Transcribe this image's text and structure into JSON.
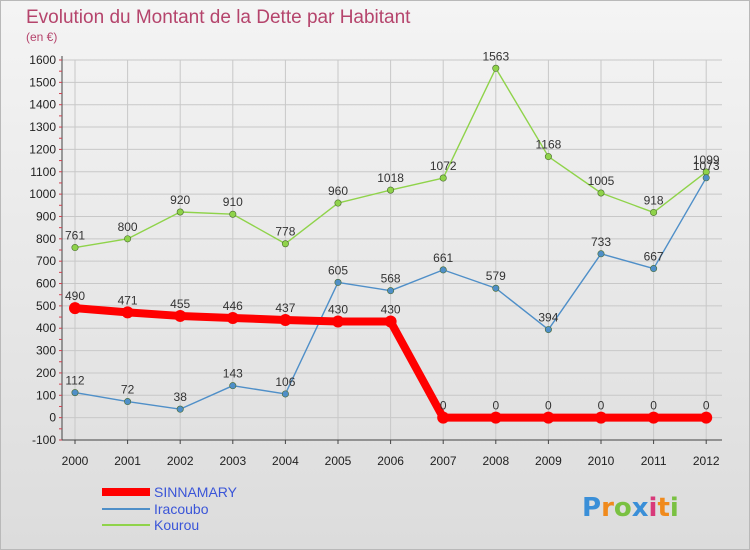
{
  "chart_data": {
    "type": "line",
    "title": "Evolution du Montant de la Dette par Habitant",
    "subtitle": "(en €)",
    "x": [
      "2000",
      "2001",
      "2002",
      "2003",
      "2004",
      "2005",
      "2006",
      "2007",
      "2008",
      "2009",
      "2010",
      "2011",
      "2012"
    ],
    "ylim": [
      -100,
      1600
    ],
    "yticks": [
      -100,
      0,
      100,
      200,
      300,
      400,
      500,
      600,
      700,
      800,
      900,
      1000,
      1100,
      1200,
      1300,
      1400,
      1500,
      1600
    ],
    "grid": true,
    "legend_position": "bottom-left",
    "series": [
      {
        "name": "SINNAMARY",
        "color": "#ff0000",
        "values": [
          490,
          471,
          455,
          446,
          437,
          430,
          430,
          0,
          0,
          0,
          0,
          0,
          0
        ]
      },
      {
        "name": "Iracoubo",
        "color": "#4f8fc8",
        "values": [
          112,
          72,
          38,
          143,
          106,
          605,
          568,
          661,
          579,
          394,
          733,
          667,
          1073
        ]
      },
      {
        "name": "Kourou",
        "color": "#8fd34a",
        "values": [
          761,
          800,
          920,
          910,
          778,
          960,
          1018,
          1072,
          1563,
          1168,
          1005,
          918,
          1099
        ]
      }
    ]
  },
  "logo": {
    "text": "Proxiti",
    "colors": [
      "#3a8fd8",
      "#f08a1c",
      "#7ac142",
      "#3a8fd8",
      "#d83a7a",
      "#f08a1c",
      "#7ac142"
    ]
  }
}
